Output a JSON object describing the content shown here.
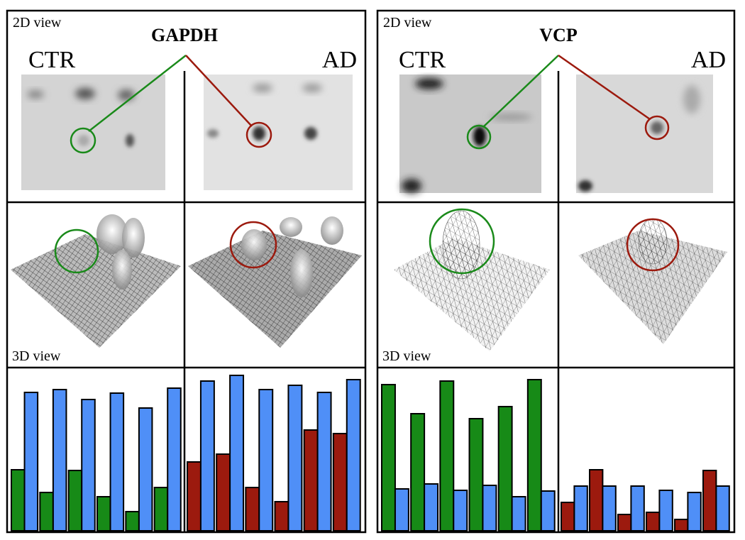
{
  "panels": [
    {
      "title": "GAPDH",
      "view_2d": "2D view",
      "view_3d": "3D view",
      "left_label": "CTR",
      "right_label": "AD",
      "bars": [
        {
          "series": [
            {
              "color": "#178a17",
              "values": [
                86,
                54,
                85,
                48,
                27,
                61
              ]
            },
            {
              "color": "#4f8ff7",
              "values": [
                195,
                199,
                185,
                194,
                173,
                201
              ]
            }
          ]
        },
        {
          "series": [
            {
              "color": "#9c1a0e",
              "values": [
                97,
                108,
                61,
                41,
                142,
                137
              ]
            },
            {
              "color": "#4f8ff7",
              "values": [
                211,
                219,
                199,
                205,
                195,
                213
              ]
            }
          ]
        }
      ]
    },
    {
      "title": "VCP",
      "view_2d": "2D view",
      "view_3d": "3D view",
      "left_label": "CTR",
      "right_label": "AD",
      "bars": [
        {
          "series": [
            {
              "color": "#178a17",
              "values": [
                206,
                165,
                211,
                158,
                175,
                213
              ]
            },
            {
              "color": "#4f8ff7",
              "values": [
                59,
                66,
                57,
                64,
                48,
                56
              ]
            }
          ]
        },
        {
          "series": [
            {
              "color": "#9c1a0e",
              "values": [
                40,
                86,
                23,
                26,
                16,
                85
              ]
            },
            {
              "color": "#4f8ff7",
              "values": [
                63,
                63,
                63,
                57,
                54,
                63
              ]
            }
          ]
        }
      ]
    }
  ]
}
